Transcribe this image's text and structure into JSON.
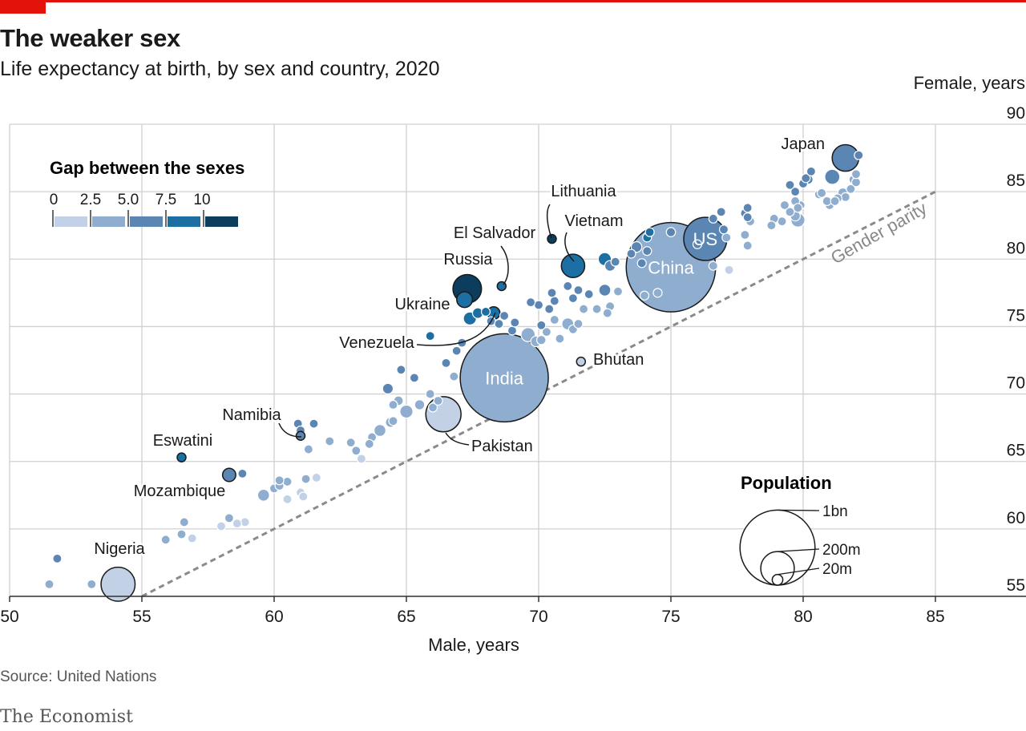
{
  "header": {
    "title": "The weaker sex",
    "subtitle": "Life expectancy at birth, by sex and country, 2020"
  },
  "footer": {
    "source": "Source: United Nations",
    "brand": "The Economist"
  },
  "colors": {
    "accent": "#e3120b",
    "grid": "#d0d0d0",
    "axis": "#333333",
    "parity": "#8a8a8a",
    "gap_scale": [
      "#c2d1e5",
      "#8fadcf",
      "#5b86b4",
      "#1b6fa3",
      "#0d3d5c"
    ]
  },
  "chart_data": {
    "type": "scatter",
    "title": "The weaker sex",
    "subtitle": "Life expectancy at birth, by sex and country, 2020",
    "xlabel": "Male, years",
    "ylabel": "Female, years",
    "xlim": [
      50,
      88
    ],
    "ylim": [
      54,
      90
    ],
    "x_ticks": [
      "50",
      "55",
      "60",
      "65",
      "70",
      "75",
      "80",
      "85"
    ],
    "y_ticks": [
      "55",
      "60",
      "65",
      "70",
      "75",
      "80",
      "85",
      "90"
    ],
    "grid": true,
    "parity_line": {
      "label": "Gender parity",
      "from": 55,
      "to": 85
    },
    "color_legend": {
      "title": "Gap between the sexes",
      "labels": [
        "0",
        "2.5",
        "5.0",
        "7.5",
        "10"
      ],
      "placement": "top-left"
    },
    "size_legend": {
      "title": "Population",
      "items": [
        {
          "label": "1bn",
          "pop_m": 1000
        },
        {
          "label": "200m",
          "pop_m": 200
        },
        {
          "label": "20m",
          "pop_m": 20
        }
      ],
      "placement": "bottom-right"
    },
    "labeled_points": [
      {
        "name": "Japan",
        "x": 81.6,
        "y": 87.5,
        "pop_m": 126,
        "gap": 5.9
      },
      {
        "name": "US",
        "x": 76.3,
        "y": 81.5,
        "pop_m": 330,
        "gap": 5.2
      },
      {
        "name": "China",
        "x": 75.0,
        "y": 79.4,
        "pop_m": 1420,
        "gap": 4.4
      },
      {
        "name": "Lithuania",
        "x": 70.5,
        "y": 81.5,
        "pop_m": 3,
        "gap": 11.0
      },
      {
        "name": "Vietnam",
        "x": 71.3,
        "y": 79.5,
        "pop_m": 97,
        "gap": 8.2
      },
      {
        "name": "El Salvador",
        "x": 68.6,
        "y": 78.0,
        "pop_m": 6,
        "gap": 9.4
      },
      {
        "name": "Russia",
        "x": 67.3,
        "y": 77.8,
        "pop_m": 145,
        "gap": 10.5
      },
      {
        "name": "Ukraine",
        "x": 67.2,
        "y": 77.0,
        "pop_m": 44,
        "gap": 9.8
      },
      {
        "name": "Venezuela",
        "x": 68.3,
        "y": 76.0,
        "pop_m": 28,
        "gap": 7.7
      },
      {
        "name": "India",
        "x": 68.7,
        "y": 71.2,
        "pop_m": 1380,
        "gap": 2.5
      },
      {
        "name": "Bhutan",
        "x": 71.6,
        "y": 72.4,
        "pop_m": 1,
        "gap": 0.8
      },
      {
        "name": "Pakistan",
        "x": 66.4,
        "y": 68.5,
        "pop_m": 220,
        "gap": 2.1
      },
      {
        "name": "Namibia",
        "x": 61.0,
        "y": 66.9,
        "pop_m": 3,
        "gap": 5.9
      },
      {
        "name": "Eswatini",
        "x": 56.5,
        "y": 65.3,
        "pop_m": 1,
        "gap": 8.8
      },
      {
        "name": "Mozambique",
        "x": 58.3,
        "y": 64.0,
        "pop_m": 31,
        "gap": 5.7
      },
      {
        "name": "Nigeria",
        "x": 54.1,
        "y": 55.9,
        "pop_m": 206,
        "gap": 1.8
      }
    ],
    "other_points": [
      [
        51.5,
        55.9,
        2,
        4.4
      ],
      [
        51.8,
        57.8,
        1,
        6.0
      ],
      [
        53.1,
        55.9,
        8,
        2.8
      ],
      [
        55.9,
        59.2,
        6,
        3.3
      ],
      [
        56.5,
        59.6,
        8,
        3.1
      ],
      [
        56.9,
        59.3,
        12,
        2.4
      ],
      [
        56.6,
        60.5,
        2,
        3.9
      ],
      [
        58.0,
        60.2,
        3,
        2.2
      ],
      [
        58.3,
        60.8,
        8,
        2.5
      ],
      [
        58.6,
        60.4,
        4,
        1.8
      ],
      [
        58.9,
        60.5,
        6,
        1.6
      ],
      [
        58.8,
        64.1,
        10,
        5.3
      ],
      [
        59.6,
        62.5,
        25,
        2.9
      ],
      [
        60.0,
        63.0,
        12,
        3.0
      ],
      [
        60.2,
        63.2,
        6,
        3.0
      ],
      [
        60.5,
        63.5,
        4,
        3.0
      ],
      [
        60.5,
        62.2,
        4,
        1.7
      ],
      [
        61.0,
        62.7,
        6,
        1.7
      ],
      [
        61.1,
        62.4,
        3,
        1.3
      ],
      [
        61.2,
        63.7,
        2,
        2.5
      ],
      [
        61.6,
        63.8,
        6,
        2.2
      ],
      [
        60.2,
        63.6,
        2,
        3.4
      ],
      [
        60.9,
        67.8,
        14,
        6.9
      ],
      [
        61.5,
        67.8,
        8,
        6.3
      ],
      [
        61.3,
        65.9,
        14,
        4.6
      ],
      [
        61.0,
        67.3,
        5,
        6.3
      ],
      [
        62.1,
        66.5,
        5,
        4.4
      ],
      [
        62.9,
        66.4,
        2,
        3.5
      ],
      [
        63.1,
        65.8,
        3,
        2.7
      ],
      [
        63.3,
        65.2,
        10,
        1.9
      ],
      [
        63.6,
        66.3,
        6,
        2.7
      ],
      [
        63.7,
        66.8,
        12,
        3.1
      ],
      [
        64.0,
        67.3,
        25,
        3.3
      ],
      [
        64.4,
        67.9,
        18,
        3.5
      ],
      [
        64.5,
        68.0,
        6,
        3.5
      ],
      [
        64.5,
        69.2,
        12,
        4.7
      ],
      [
        64.3,
        70.4,
        20,
        6.1
      ],
      [
        64.7,
        69.5,
        16,
        4.8
      ],
      [
        65.0,
        68.7,
        30,
        3.7
      ],
      [
        65.5,
        69.2,
        18,
        3.7
      ],
      [
        65.9,
        70.0,
        12,
        4.1
      ],
      [
        66.0,
        69.0,
        8,
        3.0
      ],
      [
        66.2,
        69.5,
        6,
        3.3
      ],
      [
        64.8,
        71.8,
        3,
        7.0
      ],
      [
        65.3,
        71.2,
        4,
        5.9
      ],
      [
        65.9,
        74.3,
        2,
        8.4
      ],
      [
        66.5,
        72.3,
        3,
        5.8
      ],
      [
        66.8,
        71.3,
        10,
        4.5
      ],
      [
        66.9,
        73.2,
        2,
        6.3
      ],
      [
        67.1,
        73.8,
        5,
        6.7
      ],
      [
        67.4,
        75.6,
        30,
        8.2
      ],
      [
        67.7,
        76.0,
        20,
        8.3
      ],
      [
        68.0,
        76.1,
        10,
        8.1
      ],
      [
        68.2,
        75.4,
        12,
        7.2
      ],
      [
        68.5,
        75.2,
        5,
        6.7
      ],
      [
        68.7,
        75.8,
        8,
        7.1
      ],
      [
        69.0,
        74.7,
        10,
        5.7
      ],
      [
        69.1,
        75.3,
        6,
        6.2
      ],
      [
        69.6,
        74.4,
        35,
        4.8
      ],
      [
        69.9,
        73.9,
        20,
        4.0
      ],
      [
        70.1,
        74.0,
        15,
        3.9
      ],
      [
        70.3,
        74.6,
        8,
        4.3
      ],
      [
        70.1,
        75.1,
        6,
        5.0
      ],
      [
        70.6,
        75.5,
        4,
        4.9
      ],
      [
        70.8,
        74.1,
        3,
        3.3
      ],
      [
        71.1,
        75.2,
        25,
        4.1
      ],
      [
        71.3,
        74.8,
        8,
        3.5
      ],
      [
        71.5,
        75.2,
        5,
        3.7
      ],
      [
        70.0,
        76.6,
        5,
        6.6
      ],
      [
        70.4,
        76.3,
        8,
        5.9
      ],
      [
        69.7,
        76.8,
        2,
        7.1
      ],
      [
        70.5,
        77.5,
        3,
        7.0
      ],
      [
        70.6,
        76.9,
        4,
        6.3
      ],
      [
        71.1,
        78.0,
        12,
        6.9
      ],
      [
        71.3,
        77.1,
        6,
        5.8
      ],
      [
        71.5,
        77.7,
        10,
        6.2
      ],
      [
        71.9,
        77.4,
        8,
        5.5
      ],
      [
        71.7,
        76.3,
        3,
        4.6
      ],
      [
        72.2,
        76.3,
        2,
        4.1
      ],
      [
        72.5,
        77.7,
        25,
        5.2
      ],
      [
        72.7,
        76.5,
        8,
        3.8
      ],
      [
        72.6,
        76.0,
        3,
        3.4
      ],
      [
        73.0,
        77.6,
        5,
        4.6
      ],
      [
        72.5,
        80.0,
        30,
        7.5
      ],
      [
        72.7,
        79.5,
        20,
        6.8
      ],
      [
        72.9,
        79.8,
        10,
        6.9
      ],
      [
        73.5,
        80.4,
        8,
        6.9
      ],
      [
        73.7,
        80.9,
        20,
        7.2
      ],
      [
        74.1,
        81.6,
        10,
        7.5
      ],
      [
        74.1,
        80.6,
        8,
        6.5
      ],
      [
        73.9,
        79.7,
        12,
        5.8
      ],
      [
        74.0,
        77.3,
        8,
        3.3
      ],
      [
        74.5,
        77.5,
        3,
        3.0
      ],
      [
        74.2,
        82.0,
        4,
        7.8
      ],
      [
        75.0,
        82.0,
        15,
        7.0
      ],
      [
        76.0,
        81.1,
        4,
        5.1
      ],
      [
        76.6,
        79.5,
        5,
        2.9
      ],
      [
        77.2,
        79.2,
        4,
        2.0
      ],
      [
        77.1,
        81.6,
        5,
        4.5
      ],
      [
        76.6,
        83.0,
        5,
        6.4
      ],
      [
        76.9,
        83.5,
        3,
        6.6
      ],
      [
        77.0,
        82.2,
        3,
        5.2
      ],
      [
        77.9,
        81.0,
        2,
        3.1
      ],
      [
        77.8,
        81.8,
        2,
        4.0
      ],
      [
        77.8,
        83.4,
        4,
        5.6
      ],
      [
        77.9,
        83.8,
        3,
        5.9
      ],
      [
        78.0,
        82.8,
        5,
        4.8
      ],
      [
        77.9,
        83.1,
        3,
        5.2
      ],
      [
        78.8,
        82.5,
        4,
        3.7
      ],
      [
        78.9,
        83.0,
        8,
        4.1
      ],
      [
        79.2,
        82.8,
        10,
        3.6
      ],
      [
        79.5,
        83.5,
        12,
        4.0
      ],
      [
        79.7,
        83.2,
        18,
        3.5
      ],
      [
        79.7,
        84.3,
        6,
        4.6
      ],
      [
        79.9,
        84.0,
        12,
        4.1
      ],
      [
        79.8,
        83.8,
        5,
        4.0
      ],
      [
        79.8,
        82.9,
        35,
        3.1
      ],
      [
        79.7,
        85.0,
        5,
        5.3
      ],
      [
        80.0,
        85.6,
        8,
        5.6
      ],
      [
        80.2,
        85.9,
        15,
        5.7
      ],
      [
        80.6,
        84.8,
        10,
        4.2
      ],
      [
        80.7,
        84.9,
        5,
        4.2
      ],
      [
        80.9,
        84.3,
        8,
        3.4
      ],
      [
        81.0,
        84.0,
        12,
        3.0
      ],
      [
        81.3,
        84.5,
        8,
        3.2
      ],
      [
        81.2,
        84.3,
        6,
        3.1
      ],
      [
        81.5,
        84.9,
        18,
        3.4
      ],
      [
        81.6,
        84.6,
        10,
        3.0
      ],
      [
        81.8,
        85.2,
        8,
        3.4
      ],
      [
        81.1,
        86.1,
        40,
        5.0
      ],
      [
        80.1,
        86.0,
        5,
        5.9
      ],
      [
        80.3,
        86.5,
        3,
        6.2
      ],
      [
        81.9,
        85.9,
        12,
        4.0
      ],
      [
        82.0,
        86.3,
        5,
        4.3
      ],
      [
        82.1,
        87.7,
        3,
        5.6
      ],
      [
        82.0,
        85.7,
        6,
        3.7
      ],
      [
        79.5,
        85.5,
        2,
        6.0
      ],
      [
        79.3,
        84.0,
        3,
        4.7
      ]
    ]
  }
}
